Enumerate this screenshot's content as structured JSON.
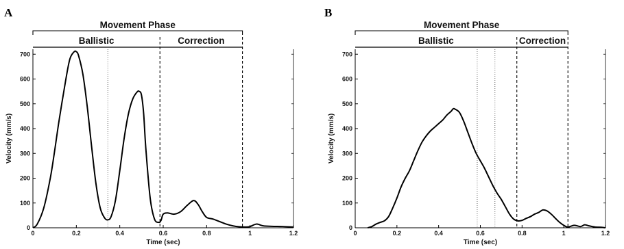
{
  "chart_data": [
    {
      "type": "line",
      "panel_letter": "A",
      "title": "Movement Phase",
      "phases": [
        "Ballistic",
        "Correction"
      ],
      "xlabel": "Time (sec)",
      "ylabel": "Velocity (mm/s)",
      "xlim": [
        0,
        1.2
      ],
      "ylim": [
        0,
        720
      ],
      "xticks": [
        0,
        0.2,
        0.4,
        0.6,
        0.8,
        1,
        1.2
      ],
      "yticks": [
        0,
        100,
        200,
        300,
        400,
        500,
        600,
        700
      ],
      "phase_boundaries": {
        "start": 0,
        "ballistic_end": 0.585,
        "correction_end": 0.965
      },
      "dotted_lines": [
        0.345
      ],
      "dashed_lines": [
        0.585,
        0.965
      ],
      "grid": false,
      "series": [
        {
          "x": [
            0,
            0.02,
            0.05,
            0.08,
            0.1,
            0.12,
            0.15,
            0.17,
            0.19,
            0.2,
            0.21,
            0.23,
            0.25,
            0.27,
            0.29,
            0.31,
            0.33,
            0.345,
            0.36,
            0.38,
            0.4,
            0.42,
            0.44,
            0.46,
            0.48,
            0.49,
            0.5,
            0.51,
            0.52,
            0.54,
            0.56,
            0.58,
            0.59,
            0.6,
            0.62,
            0.65,
            0.68,
            0.71,
            0.74,
            0.76,
            0.78,
            0.8,
            0.83,
            0.86,
            0.89,
            0.92,
            0.95,
            0.98,
            1.0,
            1.03,
            1.06,
            1.1,
            1.15,
            1.2
          ],
          "values": [
            0,
            15,
            80,
            200,
            310,
            430,
            590,
            680,
            710,
            710,
            695,
            620,
            490,
            330,
            180,
            80,
            40,
            32,
            45,
            110,
            230,
            360,
            460,
            520,
            548,
            550,
            535,
            460,
            320,
            120,
            35,
            22,
            30,
            55,
            60,
            55,
            65,
            90,
            110,
            95,
            65,
            42,
            35,
            25,
            15,
            8,
            4,
            3,
            5,
            15,
            8,
            6,
            5,
            3
          ]
        }
      ]
    },
    {
      "type": "line",
      "panel_letter": "B",
      "title": "Movement Phase",
      "phases": [
        "Ballistic",
        "Correction"
      ],
      "xlabel": "Time (sec)",
      "ylabel": "Velocity (mm/s)",
      "xlim": [
        0,
        1.2
      ],
      "ylim": [
        0,
        720
      ],
      "xticks": [
        0,
        0.2,
        0.4,
        0.6,
        0.8,
        1,
        1.2
      ],
      "yticks": [
        0,
        100,
        200,
        300,
        400,
        500,
        600,
        700
      ],
      "phase_boundaries": {
        "start": 0,
        "ballistic_end": 0.775,
        "correction_end": 1.02
      },
      "dotted_lines": [
        0.585,
        0.67
      ],
      "dashed_lines": [
        0.775,
        1.02
      ],
      "grid": false,
      "series": [
        {
          "x": [
            0.06,
            0.08,
            0.1,
            0.12,
            0.14,
            0.16,
            0.18,
            0.2,
            0.22,
            0.24,
            0.26,
            0.28,
            0.3,
            0.32,
            0.34,
            0.36,
            0.38,
            0.4,
            0.42,
            0.44,
            0.46,
            0.47,
            0.48,
            0.5,
            0.52,
            0.54,
            0.56,
            0.58,
            0.6,
            0.62,
            0.64,
            0.66,
            0.68,
            0.7,
            0.72,
            0.74,
            0.76,
            0.78,
            0.8,
            0.82,
            0.84,
            0.86,
            0.88,
            0.9,
            0.92,
            0.94,
            0.96,
            0.98,
            1.0,
            1.02,
            1.05,
            1.08,
            1.1,
            1.12,
            1.15,
            1.18,
            1.2
          ],
          "values": [
            0,
            5,
            15,
            22,
            28,
            45,
            80,
            120,
            165,
            200,
            230,
            270,
            310,
            345,
            370,
            390,
            405,
            420,
            435,
            455,
            470,
            480,
            478,
            465,
            430,
            385,
            340,
            300,
            270,
            240,
            205,
            170,
            140,
            115,
            85,
            55,
            35,
            28,
            30,
            38,
            45,
            55,
            62,
            72,
            68,
            55,
            38,
            22,
            10,
            3,
            10,
            5,
            12,
            8,
            3,
            2,
            0
          ]
        }
      ]
    }
  ]
}
